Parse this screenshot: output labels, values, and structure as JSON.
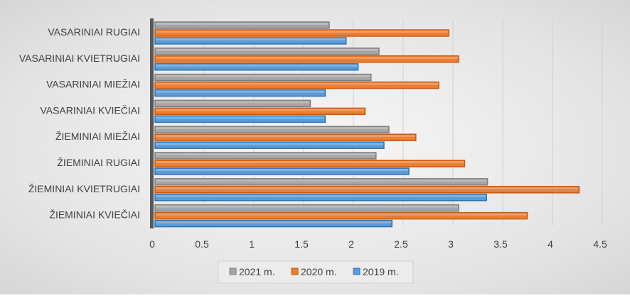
{
  "chart_data": {
    "type": "bar",
    "orientation": "horizontal",
    "title": "",
    "categories": [
      "VASARINIAI RUGIAI",
      "VASARINIAI KVIETRUGIAI",
      "VASARINIAI MIEŽIAI",
      "VASARINIAI KVIEČIAI",
      "ŽIEMINIAI MIEŽIAI",
      "ŽIEMINIAI RUGIAI",
      "ŽIEMINIAI KVIETRUGIAI",
      "ŽIEMINIAI KVIEČIAI"
    ],
    "series": [
      {
        "name": "2021 m.",
        "color": "#a5a5a5",
        "values": [
          1.75,
          2.25,
          2.17,
          1.56,
          2.35,
          2.22,
          3.34,
          3.05
        ]
      },
      {
        "name": "2020 m.",
        "color": "#ed7d31",
        "values": [
          2.95,
          3.05,
          2.85,
          2.11,
          2.62,
          3.11,
          4.26,
          3.74
        ]
      },
      {
        "name": "2019 m.",
        "color": "#5b9bd5",
        "values": [
          1.92,
          2.04,
          1.71,
          1.71,
          2.3,
          2.55,
          3.33,
          2.38
        ]
      }
    ],
    "xlim": [
      0,
      4.5
    ],
    "xticks": [
      "0",
      "0.5",
      "1",
      "1.5",
      "2",
      "2.5",
      "3",
      "3.5",
      "4",
      "4.5"
    ],
    "grid": true,
    "legend_position": "bottom"
  }
}
